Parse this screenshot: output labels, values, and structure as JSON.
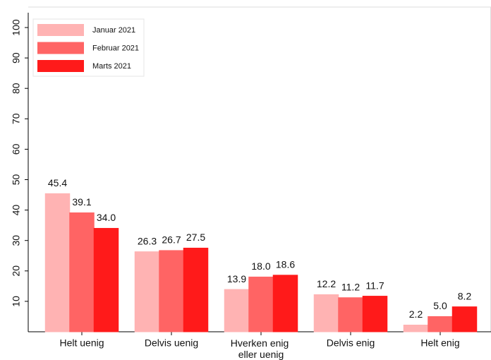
{
  "chart_data": {
    "type": "bar",
    "categories": [
      "Helt uenig",
      "Delvis uenig",
      "Hverken enig eller uenig",
      "Delvis enig",
      "Helt enig"
    ],
    "series": [
      {
        "name": "Januar 2021",
        "color": "#ffb3b3",
        "values": [
          45.4,
          26.3,
          13.9,
          12.2,
          2.2
        ],
        "value_labels": [
          "45.4",
          "26.3",
          "13.9",
          "12.2",
          "2.2"
        ]
      },
      {
        "name": "Februar 2021",
        "color": "#ff6464",
        "values": [
          39.1,
          26.7,
          18.0,
          11.2,
          5.0
        ],
        "value_labels": [
          "39.1",
          "26.7",
          "18.0",
          "11.2",
          "5.0"
        ]
      },
      {
        "name": "Marts 2021",
        "color": "#ff1a1a",
        "values": [
          34.0,
          27.5,
          18.6,
          11.7,
          8.2
        ],
        "value_labels": [
          "34.0",
          "27.5",
          "18.6",
          "11.7",
          "8.2"
        ]
      }
    ],
    "ylim": [
      0,
      100
    ],
    "yticks": [
      10,
      20,
      30,
      40,
      50,
      60,
      70,
      80,
      90,
      100
    ],
    "grid": false,
    "legend": "top-left"
  }
}
